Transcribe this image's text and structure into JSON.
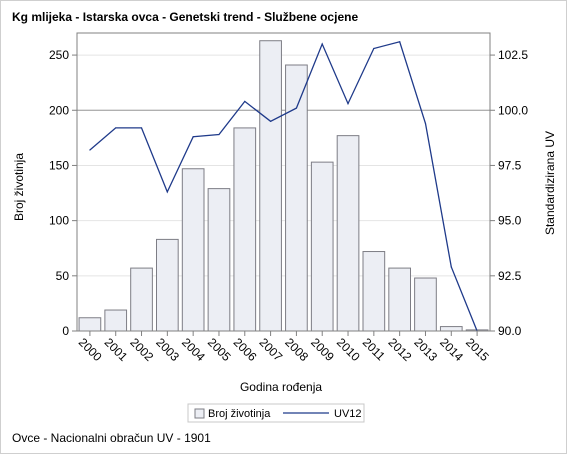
{
  "title": "Kg mlijeka - Istarska ovca - Genetski trend - Službene ocjene",
  "footnote": "Ovce - Nacionalni obračun UV - 1901",
  "colors": {
    "bar_fill": "#eceef4",
    "bar_stroke": "#7d7d85",
    "line": "#1f3a8a",
    "grid": "#e4e4e4",
    "ref_line": "#9a9a9a",
    "axis": "#808080"
  },
  "chart_data": {
    "type": "bar+line",
    "categories": [
      "2000",
      "2001",
      "2002",
      "2003",
      "2004",
      "2005",
      "2006",
      "2007",
      "2008",
      "2009",
      "2010",
      "2011",
      "2012",
      "2013",
      "2014",
      "2015"
    ],
    "xlabel": "Godina rođenja",
    "ylabel_left": "Broj životinja",
    "ylabel_right": "Standardizirana UV",
    "ylim_left": [
      0,
      270
    ],
    "yticks_left": [
      0,
      50,
      100,
      150,
      200,
      250
    ],
    "ylim_right": [
      90.0,
      103.5
    ],
    "yticks_right": [
      "90.0",
      "92.5",
      "95.0",
      "97.5",
      "100.0",
      "102.5"
    ],
    "reference_line_right": 100.0,
    "grid": true,
    "legend_position": "bottom",
    "series": [
      {
        "name": "Broj životinja",
        "kind": "bar",
        "axis": "left",
        "values": [
          12,
          19,
          57,
          83,
          147,
          129,
          184,
          263,
          241,
          153,
          177,
          72,
          57,
          48,
          4,
          1
        ]
      },
      {
        "name": "UV12",
        "kind": "line",
        "axis": "right",
        "values": [
          98.2,
          99.2,
          99.2,
          96.3,
          98.8,
          98.9,
          100.4,
          99.5,
          100.1,
          103.0,
          100.3,
          102.8,
          103.1,
          99.4,
          92.9,
          90.0
        ]
      }
    ]
  }
}
